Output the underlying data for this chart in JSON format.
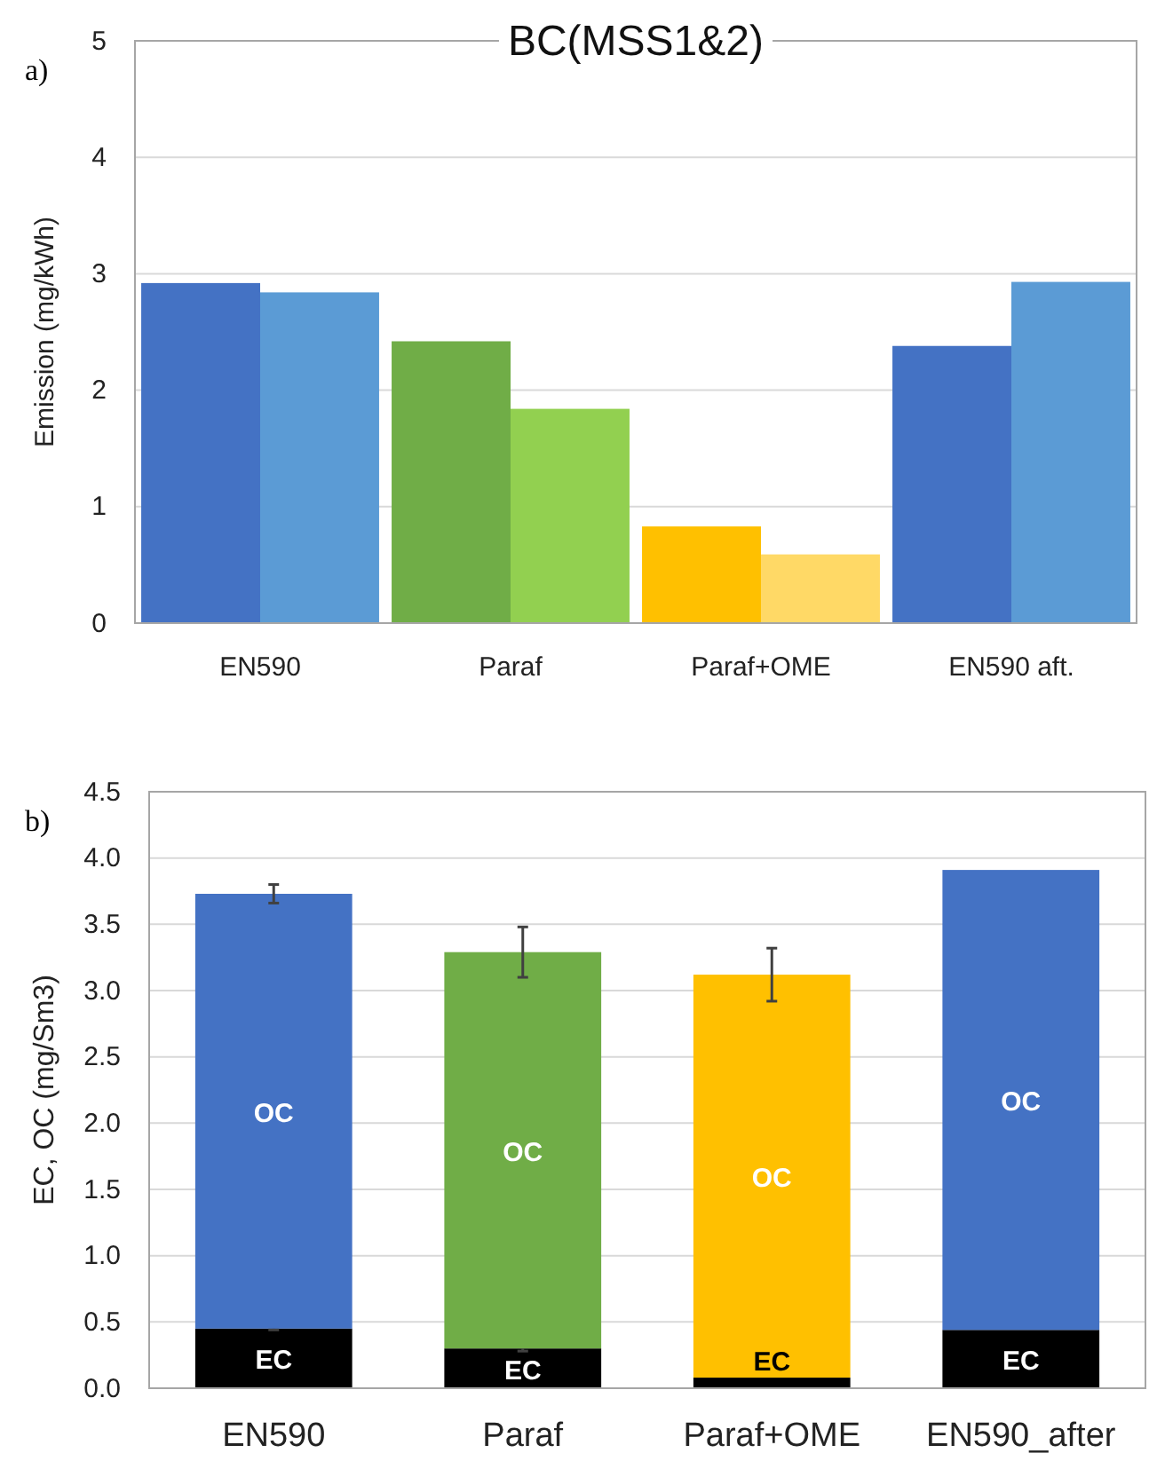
{
  "chart_data": [
    {
      "type": "bar",
      "title": "BC(MSS1&2)",
      "ylabel": "Emission (mg/kWh)",
      "annotations": [
        "a)"
      ],
      "categories": [
        "EN590",
        "Paraf",
        "Paraf+OME",
        "EN590 aft."
      ],
      "series": [
        {
          "colors": [
            "#4472c4",
            "#70ad47",
            "#ffc000",
            "#4472c4"
          ],
          "values": [
            2.92,
            2.42,
            0.83,
            2.38
          ]
        },
        {
          "colors": [
            "#5b9bd5",
            "#92d050",
            "#ffd966",
            "#5b9bd5"
          ],
          "values": [
            2.84,
            1.84,
            0.59,
            2.93
          ]
        }
      ],
      "ylim": [
        0,
        5
      ],
      "yticks": [
        0,
        1,
        2,
        3,
        4,
        5
      ],
      "grid": "y"
    },
    {
      "type": "bar",
      "stacked": true,
      "ylabel": "EC, OC (mg/Sm3)",
      "annotations": [
        "b)"
      ],
      "categories": [
        "EN590",
        "Paraf",
        "Paraf+OME",
        "EN590_after"
      ],
      "series": [
        {
          "name": "EC",
          "color": "#000000",
          "values": [
            0.45,
            0.3,
            0.08,
            0.44
          ],
          "errors": [
            0.01,
            0.02,
            null,
            null
          ]
        },
        {
          "name": "OC",
          "colors": [
            "#4472c4",
            "#70ad47",
            "#ffc000",
            "#4472c4"
          ],
          "values": [
            3.28,
            2.99,
            3.04,
            3.47
          ],
          "errors": [
            0.07,
            0.19,
            0.2,
            null
          ]
        }
      ],
      "ylim": [
        0,
        4.5
      ],
      "yticks": [
        {
          "value": 0,
          "label": "0.0"
        },
        {
          "value": 0.5,
          "label": "0.5"
        },
        {
          "value": 1,
          "label": "1.0"
        },
        {
          "value": 1.5,
          "label": "1.5"
        },
        {
          "value": 2,
          "label": "2.0"
        },
        {
          "value": 2.5,
          "label": "2.5"
        },
        {
          "value": 3,
          "label": "3.0"
        },
        {
          "value": 3.5,
          "label": "3.5"
        },
        {
          "value": 4,
          "label": "4.0"
        },
        {
          "value": 4.5,
          "label": "4.5"
        }
      ],
      "grid": "y"
    }
  ]
}
